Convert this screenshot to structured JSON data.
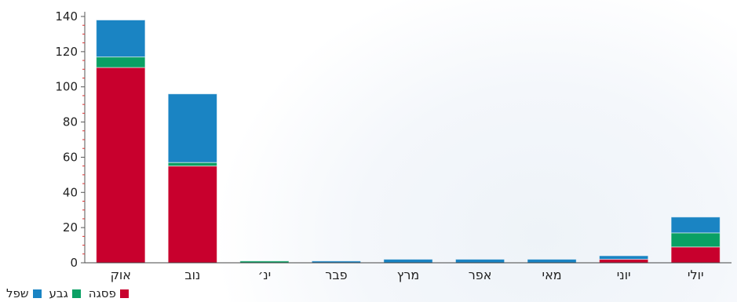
{
  "chart_data": {
    "type": "bar",
    "stacked": true,
    "categories": [
      "אוק",
      "נוב",
      "ינ׳",
      "פבר",
      "מרץ",
      "אפר",
      "מאי",
      "יוני",
      "יולי"
    ],
    "series": [
      {
        "name": "פסגה",
        "color": "#c8002d",
        "values": [
          111,
          55,
          0,
          0,
          0,
          0,
          0,
          2,
          9
        ]
      },
      {
        "name": "גבע",
        "color": "#0aa064",
        "values": [
          6,
          2,
          1,
          0,
          0,
          0,
          0,
          0,
          8
        ]
      },
      {
        "name": "שפל",
        "color": "#1a84c3",
        "values": [
          21,
          39,
          0,
          1,
          2,
          2,
          2,
          2,
          9
        ]
      }
    ],
    "ylim": [
      0,
      140
    ],
    "yticks": [
      0,
      20,
      40,
      60,
      80,
      100,
      120,
      140
    ],
    "grid": false,
    "legend_position": "bottom-left"
  }
}
